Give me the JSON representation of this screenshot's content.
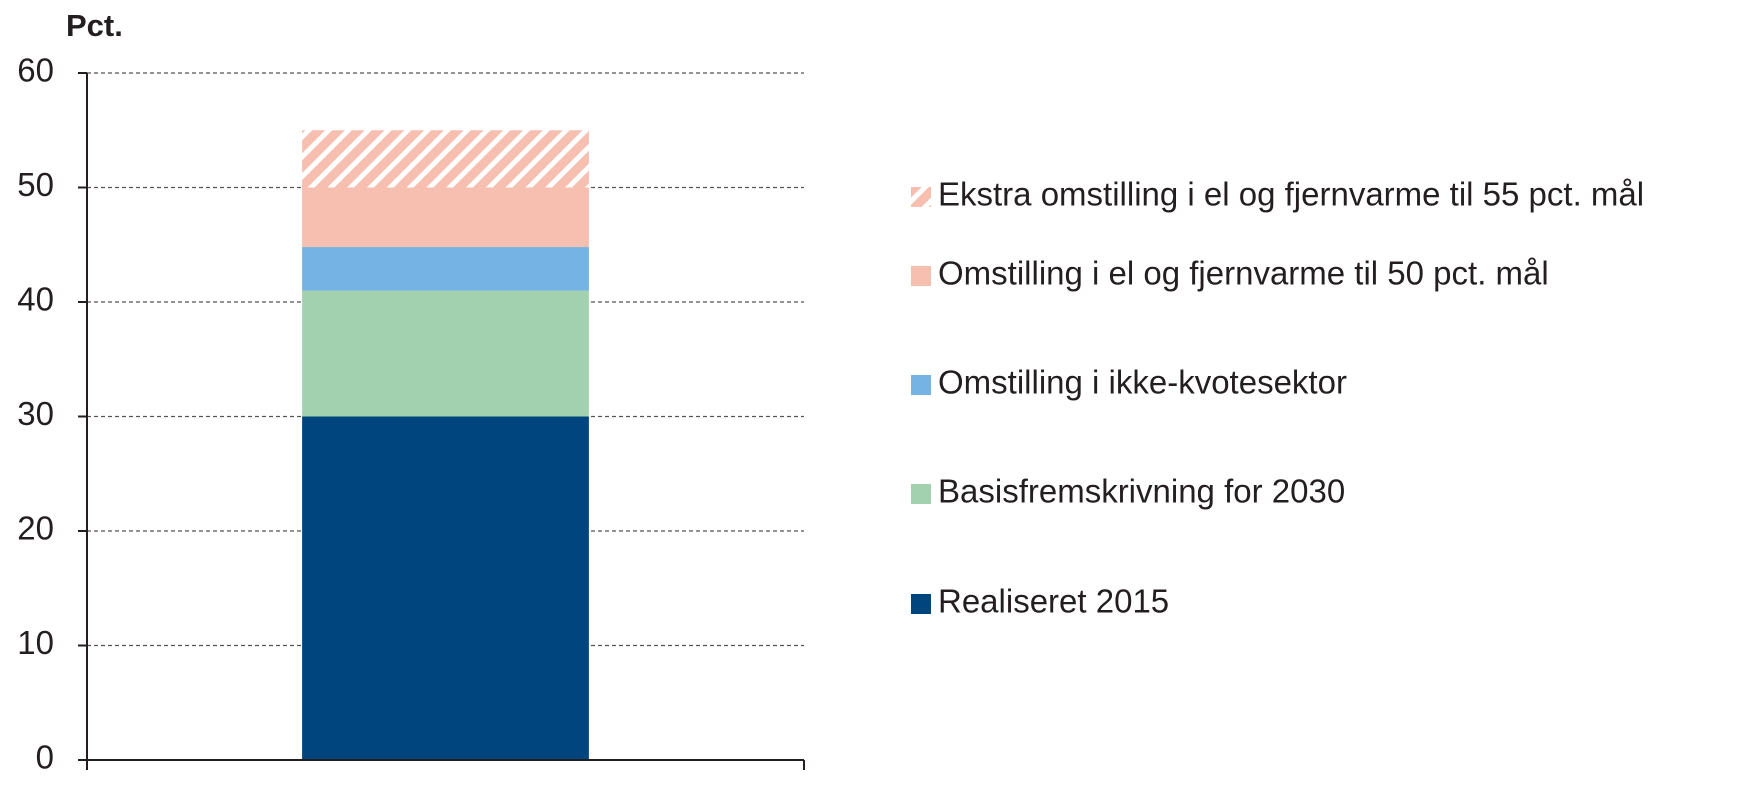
{
  "chart_data": {
    "type": "stacked_bar",
    "y_label": "Pct.",
    "categories": [
      null
    ],
    "series": [
      {
        "name": "Realiseret 2015",
        "color": "#00457e",
        "values": [
          30
        ]
      },
      {
        "name": "Basisfremskrivning for 2030",
        "color": "#a2d1b0",
        "values": [
          11
        ]
      },
      {
        "name": "Omstilling i ikke-kvotesektor",
        "color": "#74b3e3",
        "values": [
          3.8
        ]
      },
      {
        "name": "Omstilling i el og fjernvarme til 50 pct. mål",
        "color": "#f6bfb0",
        "values": [
          5.2
        ]
      },
      {
        "name": "Ekstra omstilling i el og fjernvarme til 55 pct. mål",
        "color": "#f6bfb0",
        "pattern": "hatch",
        "values": [
          5
        ]
      }
    ],
    "ylim": [
      0,
      60
    ],
    "yticks": [
      0,
      10,
      20,
      30,
      40,
      50,
      60
    ],
    "grid": true,
    "legend": "right"
  }
}
